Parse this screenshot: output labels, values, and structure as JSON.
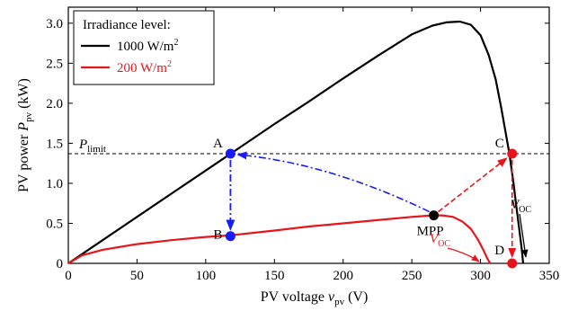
{
  "chart_data": {
    "type": "line",
    "xlabel": "PV voltage",
    "xlabel_symbol": "v",
    "xlabel_sub": "pv",
    "xlabel_unit": "(V)",
    "ylabel": "PV power",
    "ylabel_symbol": "P",
    "ylabel_sub": "pv",
    "ylabel_unit": "(kW)",
    "xlim": [
      0,
      350
    ],
    "ylim": [
      0,
      3.2
    ],
    "xticks": [
      0,
      50,
      100,
      150,
      200,
      250,
      300,
      350
    ],
    "xtick_labels": [
      "0",
      "50",
      "100",
      "150",
      "200",
      "250",
      "300",
      "350"
    ],
    "yticks": [
      0,
      0.5,
      1.0,
      1.5,
      2.0,
      2.5,
      3.0
    ],
    "ytick_labels": [
      "0",
      "0.5",
      "1.0",
      "1.5",
      "2.0",
      "2.5",
      "3.0"
    ],
    "grid": false,
    "legend": {
      "placement": "top-left",
      "title": "Irradiance level:",
      "entries": [
        {
          "value": "1000",
          "unit": "W/m",
          "sup": "2",
          "color": "#000000"
        },
        {
          "value": "200",
          "unit": "W/m",
          "sup": "2",
          "color": "#e8141b"
        }
      ]
    },
    "series": [
      {
        "color": "#000000",
        "x": [
          0,
          25,
          50,
          75,
          100,
          125,
          150,
          175,
          200,
          225,
          250,
          265,
          275,
          285,
          293,
          300,
          306,
          311,
          315,
          318,
          321,
          324,
          326,
          328,
          330,
          331
        ],
        "y": [
          0,
          0.29,
          0.58,
          0.87,
          1.16,
          1.45,
          1.74,
          2.02,
          2.31,
          2.59,
          2.86,
          2.97,
          3.01,
          3.02,
          2.98,
          2.85,
          2.6,
          2.3,
          1.95,
          1.66,
          1.37,
          1.0,
          0.72,
          0.45,
          0.18,
          0
        ]
      },
      {
        "color": "#e8141b",
        "x": [
          0,
          10,
          25,
          50,
          75,
          100,
          118,
          150,
          175,
          200,
          225,
          250,
          265,
          272,
          280,
          287,
          293,
          298,
          302,
          305,
          307
        ],
        "y": [
          0,
          0.1,
          0.17,
          0.24,
          0.29,
          0.33,
          0.35,
          0.41,
          0.46,
          0.5,
          0.54,
          0.58,
          0.6,
          0.6,
          0.58,
          0.52,
          0.43,
          0.3,
          0.17,
          0.06,
          0
        ]
      }
    ],
    "p_limit": {
      "value": 1.37,
      "label": "P",
      "sub": "limit"
    },
    "points": [
      {
        "label": "A",
        "x": 118,
        "y": 1.37,
        "color": "#1a1aff"
      },
      {
        "label": "B",
        "x": 118,
        "y": 0.34,
        "color": "#1a1aff"
      },
      {
        "label": "C",
        "x": 323,
        "y": 1.37,
        "color": "#e8141b"
      },
      {
        "label": "D",
        "x": 323,
        "y": 0,
        "color": "#e8141b"
      },
      {
        "label": "MPP",
        "x": 266,
        "y": 0.6,
        "color": "#000000"
      }
    ],
    "voc_labels": [
      {
        "text": "V",
        "sub": "OC",
        "color": "#000000"
      },
      {
        "text": "V",
        "sub": "OC",
        "color": "#e8141b"
      }
    ]
  }
}
